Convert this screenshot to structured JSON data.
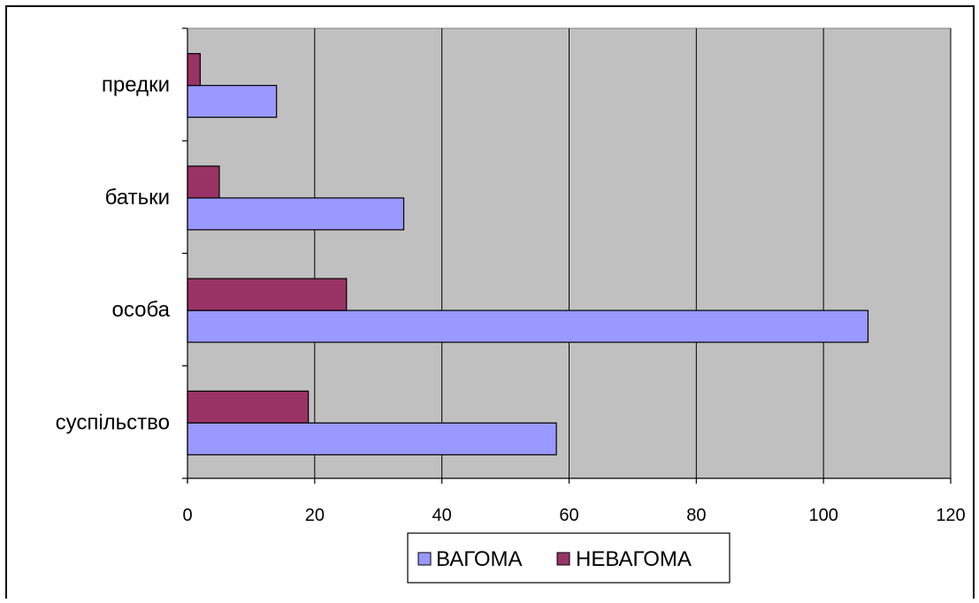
{
  "chart_data": {
    "type": "bar",
    "orientation": "horizontal",
    "categories": [
      "суспільство",
      "особа",
      "батьки",
      "предки"
    ],
    "series": [
      {
        "name": "ВАГОМА",
        "color": "#9999ff",
        "values": [
          58,
          107,
          34,
          14
        ]
      },
      {
        "name": "НЕВАГОМА",
        "color": "#993366",
        "values": [
          19,
          25,
          5,
          2
        ]
      }
    ],
    "xlim": [
      0,
      120
    ],
    "xticks": [
      0,
      20,
      40,
      60,
      80,
      100,
      120
    ],
    "plot_background": "#c0c0c0",
    "grid": true,
    "legend_position": "bottom",
    "title": "",
    "xlabel": "",
    "ylabel": ""
  }
}
